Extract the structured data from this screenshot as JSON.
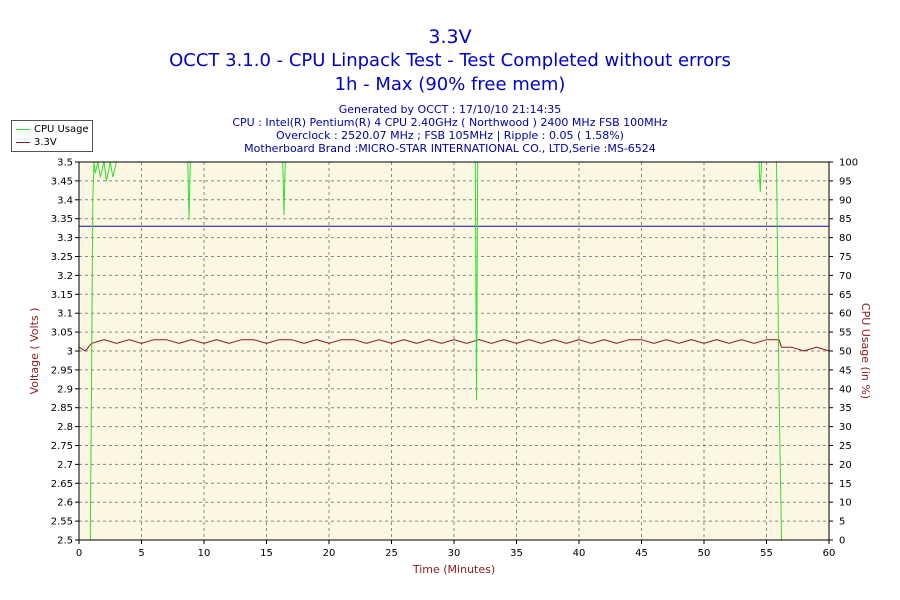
{
  "header": {
    "title": "3.3V",
    "subtitle": "OCCT 3.1.0 - CPU Linpack Test - Test Completed without errors",
    "subtitle2": "1h - Max (90% free mem)",
    "info": [
      "Generated by OCCT : 17/10/10 21:14:35",
      "CPU : Intel(R) Pentium(R) 4 CPU 2.40GHz ( Northwood ) 2400 MHz FSB 100MHz",
      "Overclock : 2520.07 MHz ; FSB 105MHz | Ripple : 0.05 ( 1.58%)",
      "Motherboard Brand :MICRO-STAR INTERNATIONAL CO., LTD,Serie :MS-6524"
    ]
  },
  "legend": {
    "items": [
      {
        "label": "CPU Usage",
        "color": "#33dd33"
      },
      {
        "label": "3.3V",
        "color": "#8b1a1a"
      }
    ]
  },
  "colors": {
    "plot_bg": "#fbf7e3",
    "grid": "#888888",
    "reference_line": "#1010b0",
    "voltage": "#8b1a1a",
    "cpu": "#33dd33"
  },
  "chart_data": {
    "type": "line",
    "xlabel": "Time (Minutes)",
    "ylabel": "Voltage ( Volts )",
    "y2label": "CPU Usage (in %)",
    "xlim": [
      0,
      60
    ],
    "ylim": [
      2.5,
      3.5
    ],
    "y2lim": [
      0,
      100
    ],
    "x_ticks": [
      0,
      5,
      10,
      15,
      20,
      25,
      30,
      35,
      40,
      45,
      50,
      55,
      60
    ],
    "y_ticks": [
      "2.5",
      "2.55",
      "2.6",
      "2.65",
      "2.7",
      "2.75",
      "2.8",
      "2.85",
      "2.9",
      "2.95",
      "3",
      "3.05",
      "3.1",
      "3.15",
      "3.2",
      "3.25",
      "3.3",
      "3.35",
      "3.4",
      "3.45",
      "3.5"
    ],
    "y2_ticks": [
      0,
      5,
      10,
      15,
      20,
      25,
      30,
      35,
      40,
      45,
      50,
      55,
      60,
      65,
      70,
      75,
      80,
      85,
      90,
      95,
      100
    ],
    "grid": true,
    "legend_position": "top-left",
    "reference_line": {
      "y": 3.33
    },
    "series": [
      {
        "name": "3.3V",
        "axis": "left",
        "x": [
          0,
          0.5,
          1,
          2,
          3,
          4,
          5,
          6,
          7,
          8,
          9,
          10,
          11,
          12,
          13,
          14,
          15,
          16,
          17,
          18,
          19,
          20,
          21,
          22,
          23,
          24,
          25,
          26,
          27,
          28,
          29,
          30,
          31,
          32,
          33,
          34,
          35,
          36,
          37,
          38,
          39,
          40,
          41,
          42,
          43,
          44,
          45,
          46,
          47,
          48,
          49,
          50,
          51,
          52,
          53,
          54,
          55,
          56,
          56.2,
          57,
          58,
          59,
          60
        ],
        "y": [
          3.01,
          3.0,
          3.02,
          3.03,
          3.02,
          3.03,
          3.02,
          3.03,
          3.03,
          3.02,
          3.03,
          3.02,
          3.03,
          3.02,
          3.03,
          3.03,
          3.02,
          3.03,
          3.03,
          3.02,
          3.03,
          3.02,
          3.03,
          3.03,
          3.02,
          3.03,
          3.02,
          3.03,
          3.02,
          3.03,
          3.02,
          3.03,
          3.02,
          3.03,
          3.02,
          3.03,
          3.02,
          3.03,
          3.02,
          3.03,
          3.02,
          3.03,
          3.02,
          3.03,
          3.02,
          3.03,
          3.03,
          3.02,
          3.03,
          3.02,
          3.03,
          3.02,
          3.03,
          3.02,
          3.03,
          3.02,
          3.03,
          3.03,
          3.01,
          3.01,
          3.0,
          3.01,
          3.0
        ]
      },
      {
        "name": "CPU Usage",
        "axis": "right",
        "x": [
          0.9,
          1.0,
          1.1,
          1.2,
          1.3,
          1.5,
          1.7,
          2.0,
          2.2,
          2.5,
          2.7,
          3.0,
          4,
          6,
          8,
          8.7,
          8.8,
          8.9,
          10,
          13,
          16,
          16.3,
          16.4,
          16.5,
          18,
          22,
          26,
          30,
          31.7,
          31.8,
          31.9,
          32,
          34,
          38,
          41,
          44,
          47,
          50,
          54.4,
          54.5,
          54.6,
          55,
          55.8,
          56.0,
          56.2,
          58,
          60
        ],
        "y": [
          0,
          40,
          90,
          100,
          97,
          100,
          96,
          100,
          95,
          100,
          96,
          100,
          100,
          100,
          100,
          100,
          85,
          100,
          100,
          100,
          100,
          100,
          86,
          100,
          100,
          100,
          100,
          100,
          100,
          37,
          100,
          100,
          100,
          100,
          100,
          100,
          100,
          100,
          100,
          92,
          100,
          100,
          100,
          40,
          0,
          0,
          0
        ]
      }
    ]
  }
}
